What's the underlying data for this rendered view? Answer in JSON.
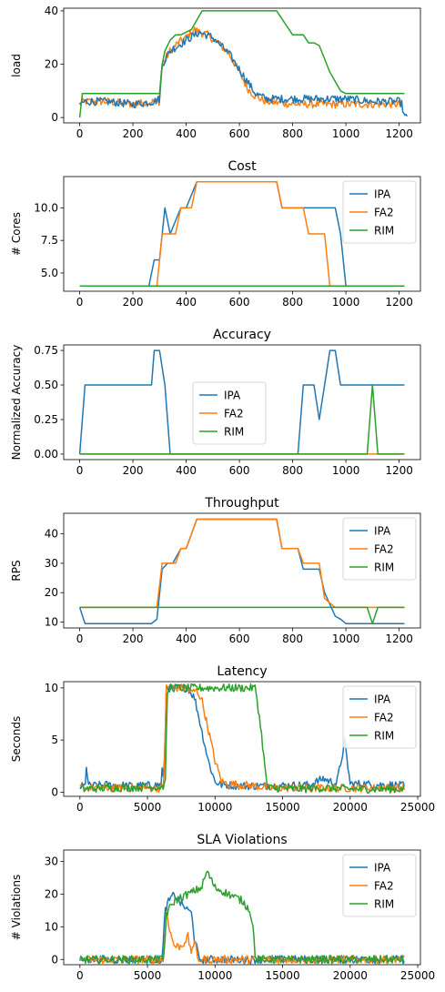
{
  "colors": {
    "IPA": "#1f77b4",
    "FA2": "#ff7f0e",
    "RIM": "#2ca02c"
  },
  "chart_data": [
    {
      "type": "line",
      "title": "",
      "xlabel": "",
      "ylabel": "load",
      "xlim": [
        -60,
        1280
      ],
      "ylim": [
        -2,
        41
      ],
      "xticks": [
        0,
        200,
        400,
        600,
        800,
        1000,
        1200
      ],
      "yticks": [
        0,
        20,
        40
      ],
      "legend": null,
      "series": [
        {
          "key": "FA2",
          "name": "",
          "noisy": true,
          "x": [
            0,
            20,
            100,
            200,
            280,
            300,
            310,
            340,
            370,
            400,
            430,
            450,
            480,
            520,
            560,
            600,
            630,
            660,
            700,
            800,
            900,
            1000,
            1100,
            1200,
            1210
          ],
          "y": [
            5,
            6,
            6,
            5,
            6,
            6,
            20,
            25,
            28,
            30,
            33,
            32,
            31,
            28,
            24,
            17,
            11,
            8,
            6,
            5,
            5,
            5,
            5,
            5,
            5
          ]
        },
        {
          "key": "IPA",
          "name": "",
          "noisy": true,
          "x": [
            0,
            20,
            100,
            200,
            280,
            300,
            310,
            340,
            400,
            450,
            500,
            560,
            620,
            660,
            700,
            800,
            900,
            1000,
            1100,
            1200,
            1210,
            1220,
            1230
          ],
          "y": [
            5,
            6,
            6,
            5,
            6,
            7,
            20,
            25,
            29,
            32,
            30,
            24,
            15,
            9,
            7,
            7,
            7,
            7,
            6,
            6,
            5,
            0,
            0
          ]
        },
        {
          "key": "RIM",
          "name": "",
          "noisy": false,
          "x": [
            0,
            10,
            300,
            310,
            320,
            340,
            360,
            380,
            420,
            460,
            740,
            780,
            800,
            840,
            860,
            880,
            900,
            940,
            980,
            1000,
            1220
          ],
          "y": [
            0,
            9,
            9,
            20,
            25,
            29,
            31,
            31,
            33,
            40,
            40,
            34,
            31,
            31,
            28,
            28,
            27,
            17,
            10,
            9,
            9
          ]
        }
      ]
    },
    {
      "type": "line",
      "title": "Cost",
      "xlabel": "",
      "ylabel": "# Cores",
      "xlim": [
        -60,
        1280
      ],
      "ylim": [
        3.6,
        12.4
      ],
      "xticks": [
        0,
        200,
        400,
        600,
        800,
        1000,
        1200
      ],
      "yticks": [
        5.0,
        7.5,
        10.0
      ],
      "legend": "top-right",
      "series": [
        {
          "key": "IPA",
          "name": "IPA",
          "noisy": false,
          "x": [
            0,
            260,
            280,
            300,
            320,
            340,
            380,
            400,
            440,
            740,
            760,
            840,
            860,
            960,
            980,
            1000,
            1220
          ],
          "y": [
            4,
            4,
            6,
            6,
            10,
            8,
            10,
            10,
            12,
            12,
            10,
            10,
            10,
            10,
            8,
            4,
            4
          ]
        },
        {
          "key": "FA2",
          "name": "FA2",
          "noisy": false,
          "x": [
            0,
            290,
            310,
            340,
            360,
            380,
            420,
            440,
            740,
            760,
            840,
            860,
            900,
            920,
            940,
            1220
          ],
          "y": [
            4,
            4,
            8,
            8,
            8,
            10,
            10,
            12,
            12,
            10,
            10,
            8,
            8,
            8,
            4,
            4
          ]
        },
        {
          "key": "RIM",
          "name": "RIM",
          "noisy": false,
          "x": [
            0,
            1220
          ],
          "y": [
            4,
            4
          ]
        }
      ]
    },
    {
      "type": "line",
      "title": "Accuracy",
      "xlabel": "",
      "ylabel": "Normalized Accuracy",
      "xlim": [
        -60,
        1280
      ],
      "ylim": [
        -0.04,
        0.79
      ],
      "xticks": [
        0,
        200,
        400,
        600,
        800,
        1000,
        1200
      ],
      "yticks": [
        0.0,
        0.25,
        0.5,
        0.75
      ],
      "legend": "center",
      "series": [
        {
          "key": "IPA",
          "name": "IPA",
          "noisy": false,
          "x": [
            0,
            20,
            270,
            280,
            300,
            320,
            340,
            820,
            840,
            880,
            900,
            920,
            940,
            960,
            980,
            1000,
            1220
          ],
          "y": [
            0,
            0.5,
            0.5,
            0.75,
            0.75,
            0.5,
            0,
            0,
            0.5,
            0.5,
            0.25,
            0.5,
            0.75,
            0.75,
            0.5,
            0.5,
            0.5
          ]
        },
        {
          "key": "FA2",
          "name": "FA2",
          "noisy": false,
          "x": [
            0,
            1220
          ],
          "y": [
            0,
            0
          ]
        },
        {
          "key": "RIM",
          "name": "RIM",
          "noisy": false,
          "x": [
            0,
            1080,
            1100,
            1120,
            1220
          ],
          "y": [
            0,
            0,
            0.5,
            0,
            0
          ]
        }
      ]
    },
    {
      "type": "line",
      "title": "Throughput",
      "xlabel": "",
      "ylabel": "RPS",
      "xlim": [
        -60,
        1280
      ],
      "ylim": [
        8,
        47
      ],
      "xticks": [
        0,
        200,
        400,
        600,
        800,
        1000,
        1200
      ],
      "yticks": [
        10,
        20,
        30,
        40
      ],
      "legend": "top-right",
      "series": [
        {
          "key": "IPA",
          "name": "IPA",
          "noisy": false,
          "x": [
            0,
            20,
            270,
            290,
            310,
            330,
            350,
            380,
            400,
            440,
            740,
            760,
            820,
            840,
            900,
            920,
            960,
            980,
            1000,
            1220
          ],
          "y": [
            15,
            9.5,
            9.5,
            11,
            28,
            30,
            30,
            35,
            35,
            45,
            45,
            35,
            35,
            28,
            28,
            20,
            12,
            11,
            9.5,
            9.5
          ]
        },
        {
          "key": "FA2",
          "name": "FA2",
          "noisy": false,
          "x": [
            0,
            290,
            310,
            340,
            360,
            380,
            400,
            440,
            740,
            760,
            820,
            840,
            880,
            900,
            920,
            960,
            980,
            1080,
            1100,
            1220
          ],
          "y": [
            15,
            15,
            30,
            30,
            30,
            35,
            35,
            45,
            45,
            35,
            35,
            30,
            30,
            30,
            18,
            15,
            15,
            15,
            15,
            15
          ]
        },
        {
          "key": "RIM",
          "name": "RIM",
          "noisy": false,
          "x": [
            0,
            1080,
            1100,
            1120,
            1220
          ],
          "y": [
            15,
            15,
            9.5,
            15,
            15
          ]
        }
      ]
    },
    {
      "type": "line",
      "title": "Latency",
      "xlabel": "",
      "ylabel": "Seconds",
      "xlim": [
        -1200,
        25200
      ],
      "ylim": [
        -0.4,
        10.6
      ],
      "xticks": [
        0,
        5000,
        10000,
        15000,
        20000,
        25000
      ],
      "yticks": [
        0,
        5,
        10
      ],
      "legend": "top-right",
      "series": [
        {
          "key": "IPA",
          "name": "IPA",
          "noisy": true,
          "x": [
            0,
            400,
            500,
            600,
            2000,
            4000,
            6000,
            6100,
            6200,
            6400,
            8000,
            8500,
            9000,
            9500,
            10000,
            10500,
            12000,
            14000,
            17000,
            18000,
            19000,
            19600,
            20000,
            21000,
            22000,
            23000,
            24000
          ],
          "y": [
            0.5,
            0.6,
            3.1,
            0.6,
            0.7,
            0.6,
            0.7,
            2.5,
            0.7,
            10,
            10,
            9,
            6,
            3,
            1,
            0.7,
            0.6,
            0.6,
            0.7,
            1.3,
            0.8,
            4.8,
            0.8,
            0.8,
            0.7,
            0.7,
            0.6
          ]
        },
        {
          "key": "FA2",
          "name": "FA2",
          "noisy": true,
          "x": [
            0,
            2000,
            6000,
            6200,
            6400,
            8000,
            8200,
            8600,
            9000,
            9500,
            10000,
            10500,
            11000,
            13000,
            14000,
            16000,
            18000,
            20000,
            22000,
            24000
          ],
          "y": [
            0.4,
            0.4,
            0.4,
            0.5,
            10,
            10,
            9.5,
            9.8,
            9,
            6,
            3,
            1,
            0.8,
            0.6,
            0.4,
            0.4,
            0.4,
            0.4,
            0.4,
            0.4
          ]
        },
        {
          "key": "RIM",
          "name": "RIM",
          "noisy": true,
          "x": [
            0,
            2000,
            6000,
            6300,
            6500,
            8000,
            10000,
            12000,
            13000,
            13400,
            13800,
            14000,
            14500,
            16000,
            18000,
            20000,
            22000,
            24000
          ],
          "y": [
            0.3,
            0.4,
            0.5,
            0.6,
            10,
            10,
            10,
            10,
            10,
            6,
            1,
            0.4,
            0.4,
            0.3,
            0.4,
            0.3,
            0.3,
            0.3
          ]
        }
      ]
    },
    {
      "type": "line",
      "title": "SLA Violations",
      "xlabel": "",
      "ylabel": "# Violations",
      "xlim": [
        -1200,
        25200
      ],
      "ylim": [
        -1.6,
        33.5
      ],
      "xticks": [
        0,
        5000,
        10000,
        15000,
        20000,
        25000
      ],
      "yticks": [
        0,
        10,
        20,
        30
      ],
      "legend": "top-right",
      "series": [
        {
          "key": "IPA",
          "name": "IPA",
          "noisy": true,
          "x": [
            0,
            6000,
            6100,
            6300,
            6600,
            7000,
            7500,
            8000,
            8300,
            8500,
            8700,
            8800,
            9000,
            24000
          ],
          "y": [
            0,
            0,
            0,
            15,
            18,
            20,
            17,
            15,
            14,
            5,
            3,
            0,
            0,
            0
          ]
        },
        {
          "key": "FA2",
          "name": "FA2",
          "noisy": true,
          "x": [
            0,
            6000,
            6200,
            6400,
            6700,
            7000,
            7500,
            8000,
            8200,
            8500,
            8700,
            8900,
            24000
          ],
          "y": [
            0,
            0,
            0,
            15,
            8,
            4,
            4,
            7,
            2,
            6,
            0,
            0,
            0
          ]
        },
        {
          "key": "RIM",
          "name": "RIM",
          "noisy": true,
          "x": [
            0,
            6200,
            6400,
            6700,
            7000,
            8000,
            9000,
            9400,
            10000,
            11000,
            12000,
            12600,
            12800,
            13000,
            24000
          ],
          "y": [
            0,
            0,
            14,
            16,
            18,
            20,
            22,
            27,
            22,
            20,
            18,
            15,
            10,
            0,
            0
          ]
        }
      ]
    }
  ]
}
